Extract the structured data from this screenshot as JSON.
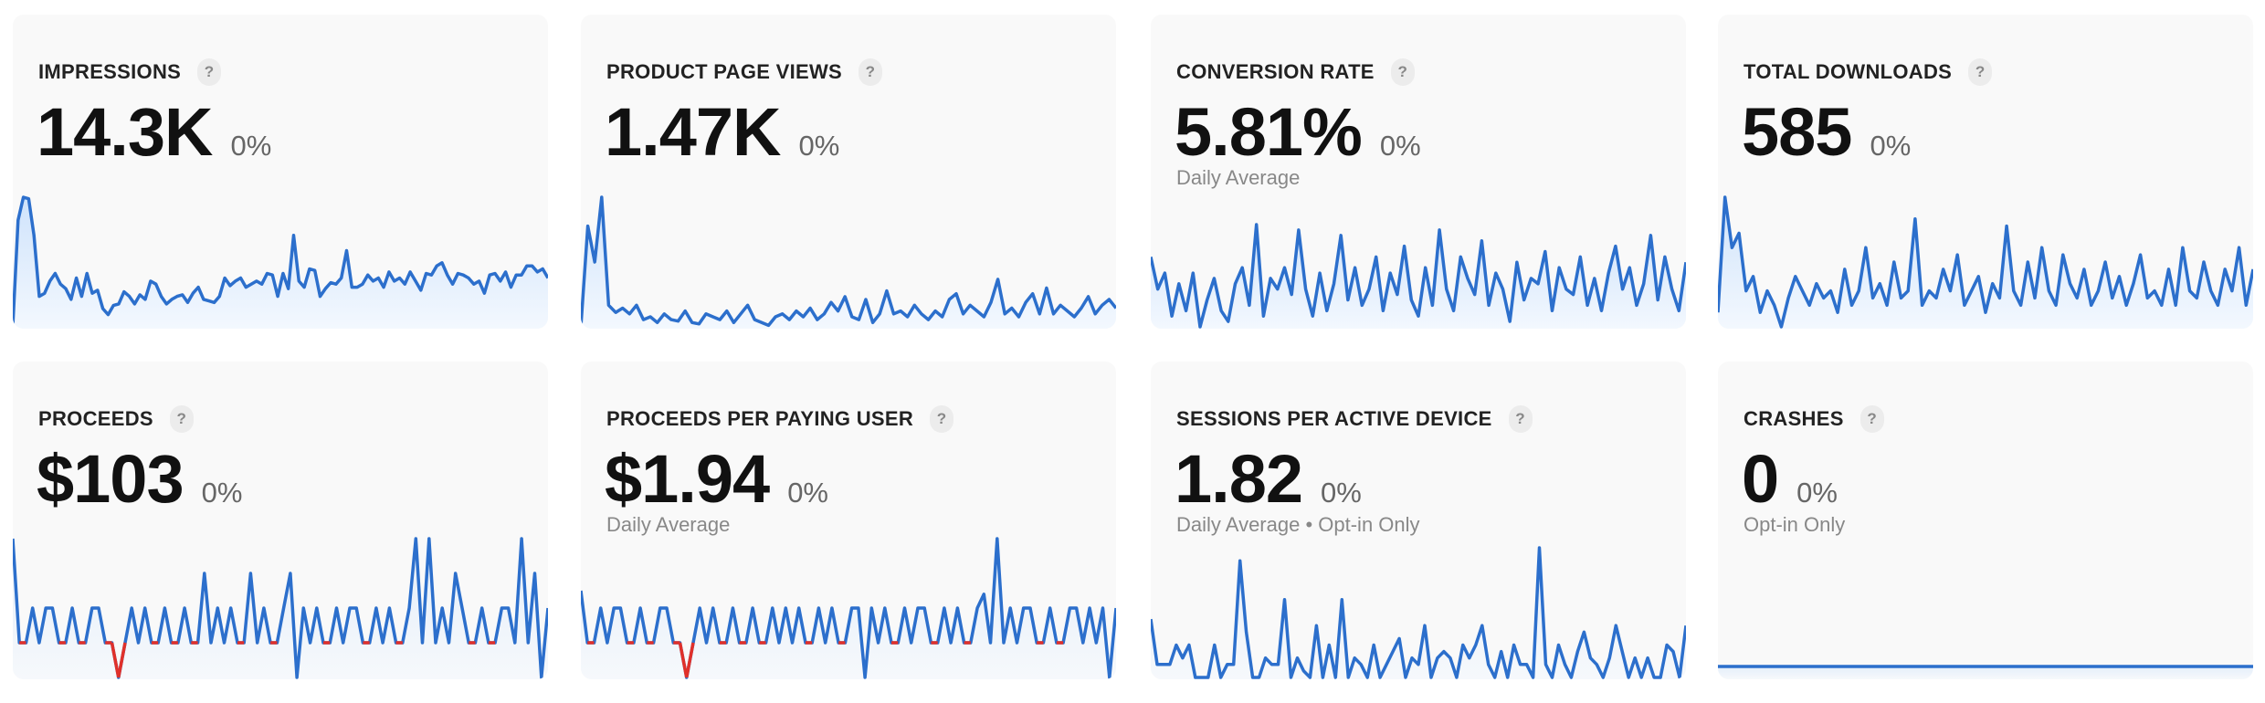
{
  "colors": {
    "line": "#2c6fcc",
    "fill_top": "#cfe3fb",
    "fill_bottom": "#f3f8fe",
    "negative": "#e0302a",
    "card_bg": "#f9f9f9"
  },
  "help_label": "?",
  "cards": [
    {
      "title": "IMPRESSIONS",
      "value": "14.3K",
      "change": "0%",
      "subtitle": "",
      "chart_data": {
        "type": "area",
        "values": [
          10,
          80,
          95,
          94,
          70,
          30,
          32,
          40,
          45,
          38,
          35,
          28,
          42,
          30,
          45,
          32,
          34,
          22,
          18,
          24,
          25,
          33,
          30,
          25,
          31,
          28,
          40,
          38,
          30,
          25,
          28,
          30,
          31,
          26,
          32,
          36,
          28,
          27,
          26,
          30,
          42,
          37,
          40,
          42,
          36,
          38,
          40,
          38,
          45,
          44,
          30,
          45,
          35,
          70,
          40,
          36,
          48,
          47,
          30,
          35,
          39,
          38,
          42,
          60,
          36,
          36,
          38,
          44,
          40,
          42,
          36,
          46,
          40,
          42,
          38,
          46,
          40,
          34,
          45,
          44,
          50,
          52,
          44,
          38,
          45,
          44,
          42,
          38,
          40,
          32,
          44,
          45,
          40,
          46,
          36,
          44,
          44,
          50,
          50,
          46,
          48,
          42
        ]
      }
    },
    {
      "title": "PRODUCT PAGE VIEWS",
      "value": "1.47K",
      "change": "0%",
      "subtitle": "",
      "chart_data": {
        "type": "area",
        "values": [
          5,
          75,
          50,
          95,
          20,
          15,
          18,
          14,
          20,
          10,
          12,
          8,
          14,
          10,
          9,
          16,
          8,
          7,
          14,
          12,
          10,
          16,
          8,
          14,
          20,
          10,
          8,
          6,
          12,
          14,
          10,
          16,
          12,
          18,
          10,
          14,
          22,
          16,
          26,
          12,
          10,
          24,
          8,
          14,
          30,
          14,
          16,
          12,
          20,
          14,
          10,
          16,
          12,
          24,
          28,
          14,
          20,
          16,
          12,
          22,
          38,
          14,
          18,
          12,
          22,
          28,
          14,
          32,
          14,
          20,
          16,
          12,
          18,
          26,
          14,
          20,
          24,
          18
        ]
      }
    },
    {
      "title": "CONVERSION RATE",
      "value": "5.81%",
      "change": "0%",
      "subtitle": "Daily Average",
      "chart_data": {
        "type": "area",
        "values": [
          70,
          40,
          55,
          15,
          45,
          20,
          55,
          5,
          30,
          50,
          20,
          10,
          45,
          60,
          25,
          100,
          15,
          50,
          40,
          60,
          35,
          95,
          40,
          15,
          55,
          20,
          45,
          90,
          30,
          60,
          25,
          40,
          70,
          20,
          55,
          35,
          80,
          30,
          15,
          60,
          25,
          95,
          40,
          20,
          70,
          50,
          35,
          85,
          25,
          55,
          40,
          10,
          65,
          30,
          50,
          45,
          75,
          20,
          60,
          40,
          35,
          70,
          25,
          50,
          20,
          55,
          80,
          40,
          60,
          25,
          45,
          90,
          30,
          70,
          40,
          20,
          65
        ]
      }
    },
    {
      "title": "TOTAL DOWNLOADS",
      "value": "585",
      "change": "0%",
      "subtitle": "",
      "chart_data": {
        "type": "area",
        "values": [
          15,
          95,
          60,
          70,
          30,
          40,
          15,
          30,
          20,
          5,
          25,
          40,
          30,
          20,
          35,
          25,
          30,
          15,
          45,
          20,
          30,
          60,
          25,
          35,
          20,
          50,
          25,
          30,
          80,
          20,
          30,
          25,
          45,
          30,
          55,
          20,
          30,
          40,
          15,
          35,
          25,
          75,
          30,
          20,
          50,
          25,
          60,
          30,
          20,
          55,
          35,
          25,
          45,
          20,
          30,
          50,
          25,
          40,
          20,
          35,
          55,
          25,
          30,
          20,
          45,
          20,
          60,
          30,
          25,
          50,
          30,
          20,
          45,
          30,
          60,
          20,
          45
        ]
      }
    },
    {
      "title": "PROCEEDS",
      "value": "$103",
      "change": "0%",
      "subtitle": "",
      "chart_data": {
        "type": "line",
        "values": [
          3,
          0,
          0,
          1,
          0,
          1,
          1,
          0,
          0,
          1,
          0,
          0,
          1,
          1,
          0,
          0,
          -1,
          0,
          1,
          0,
          1,
          0,
          0,
          1,
          0,
          0,
          1,
          0,
          0,
          2,
          0,
          1,
          0,
          1,
          0,
          0,
          2,
          0,
          1,
          0,
          0,
          1,
          2,
          -1,
          1,
          0,
          1,
          0,
          0,
          1,
          0,
          1,
          1,
          0,
          0,
          1,
          0,
          1,
          0,
          0,
          1,
          3,
          0,
          3,
          0,
          1,
          0,
          2,
          1,
          0,
          0,
          1,
          0,
          0,
          1,
          1,
          0,
          3,
          0,
          2,
          -1,
          1
        ]
      }
    },
    {
      "title": "PROCEEDS PER PAYING USER",
      "value": "$1.94",
      "change": "0%",
      "subtitle": "Daily Average",
      "chart_data": {
        "type": "line",
        "values": [
          1.5,
          0,
          0,
          1,
          0,
          1,
          1,
          0,
          0,
          1,
          0,
          0,
          1,
          1,
          0,
          0,
          -1,
          0,
          1,
          0,
          1,
          0,
          0,
          1,
          0,
          0,
          1,
          0,
          0,
          1,
          0,
          1,
          0,
          1,
          0,
          0,
          1,
          0,
          1,
          0,
          0,
          1,
          1,
          -1,
          1,
          0,
          1,
          0,
          0,
          1,
          0,
          1,
          1,
          0,
          0,
          1,
          0,
          1,
          0,
          0,
          1,
          1.4,
          0,
          3,
          0,
          1,
          0,
          1,
          1,
          0,
          0,
          1,
          0,
          0,
          1,
          1,
          0,
          1,
          0,
          1,
          -1,
          1
        ]
      }
    },
    {
      "title": "SESSIONS PER ACTIVE DEVICE",
      "value": "1.82",
      "change": "0%",
      "subtitle": "Daily Average • Opt-in Only",
      "chart_data": {
        "type": "line",
        "values": [
          45,
          10,
          10,
          10,
          25,
          15,
          25,
          0,
          0,
          0,
          25,
          0,
          10,
          10,
          90,
          35,
          0,
          0,
          15,
          10,
          10,
          60,
          0,
          15,
          5,
          0,
          40,
          0,
          25,
          0,
          60,
          0,
          15,
          10,
          0,
          25,
          0,
          10,
          20,
          30,
          0,
          15,
          10,
          40,
          0,
          15,
          20,
          15,
          0,
          25,
          15,
          25,
          40,
          10,
          0,
          20,
          0,
          25,
          10,
          10,
          0,
          100,
          10,
          0,
          25,
          10,
          0,
          20,
          35,
          15,
          10,
          0,
          15,
          40,
          20,
          0,
          15,
          0,
          15,
          0,
          0,
          25,
          20,
          0,
          40
        ]
      }
    },
    {
      "title": "CRASHES",
      "value": "0",
      "change": "0%",
      "subtitle": "Opt-in Only",
      "chart_data": {
        "type": "line",
        "values": [
          0,
          0,
          0,
          0,
          0,
          0,
          0,
          0,
          0,
          0
        ],
        "ylim": [
          0,
          1
        ]
      }
    }
  ]
}
